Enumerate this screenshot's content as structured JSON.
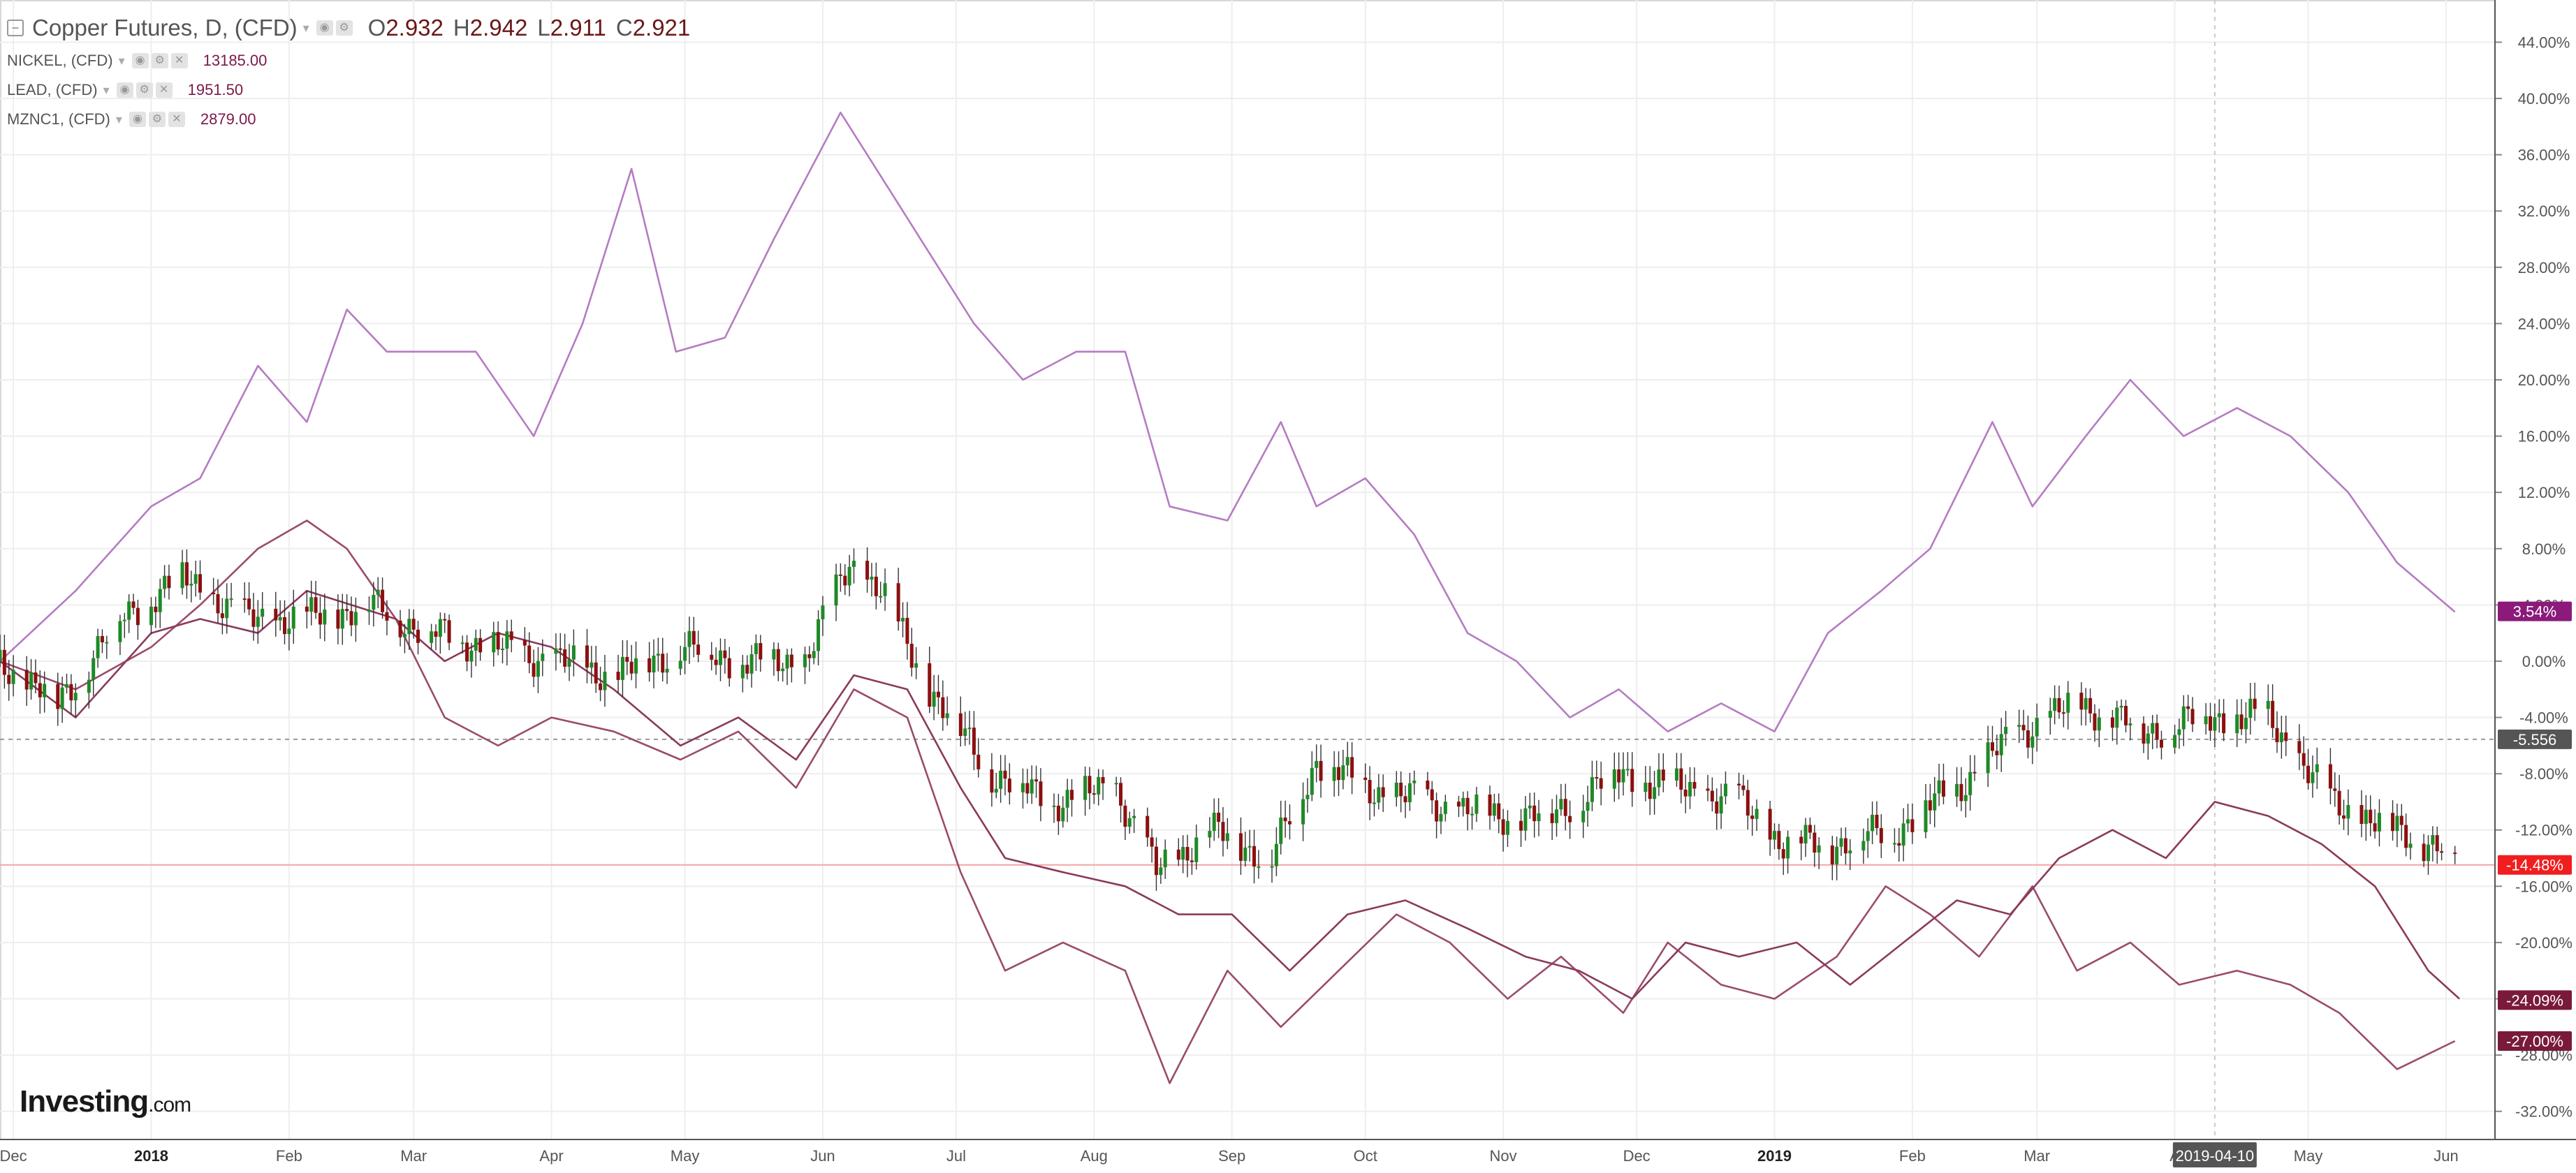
{
  "legend": {
    "main": {
      "title": "Copper Futures, D, (CFD)",
      "o_label": "O",
      "o_value": "2.932",
      "h_label": "H",
      "h_value": "2.942",
      "l_label": "L",
      "l_value": "2.911",
      "c_label": "C",
      "c_value": "2.921"
    },
    "overlays": [
      {
        "name": "NICKEL, (CFD)",
        "value": "13185.00"
      },
      {
        "name": "LEAD, (CFD)",
        "value": "1951.50"
      },
      {
        "name": "MZNC1, (CFD)",
        "value": "2879.00"
      }
    ]
  },
  "logo": {
    "name": "Investing",
    "suffix": ".com"
  },
  "chart_data": {
    "type": "line",
    "y_unit": "%",
    "ylim": [
      -34,
      47
    ],
    "y_ticks": [
      {
        "v": 44,
        "label": "44.00%"
      },
      {
        "v": 40,
        "label": "40.00%"
      },
      {
        "v": 36,
        "label": "36.00%"
      },
      {
        "v": 32,
        "label": "32.00%"
      },
      {
        "v": 28,
        "label": "28.00%"
      },
      {
        "v": 24,
        "label": "24.00%"
      },
      {
        "v": 20,
        "label": "20.00%"
      },
      {
        "v": 16,
        "label": "16.00%"
      },
      {
        "v": 12,
        "label": "12.00%"
      },
      {
        "v": 8,
        "label": "8.00%"
      },
      {
        "v": 4,
        "label": "4.00%"
      },
      {
        "v": 0,
        "label": "0.00%"
      },
      {
        "v": -4,
        "label": "-4.00%"
      },
      {
        "v": -8,
        "label": "-8.00%"
      },
      {
        "v": -12,
        "label": "-12.00%"
      },
      {
        "v": -16,
        "label": "-16.00%"
      },
      {
        "v": -20,
        "label": "-20.00%"
      },
      {
        "v": -24,
        "label": "-24.00%"
      },
      {
        "v": -28,
        "label": "-28.00%"
      },
      {
        "v": -32,
        "label": "-32.00%"
      }
    ],
    "x_ticks": [
      {
        "date": "2017-12-01",
        "label": "Dec",
        "bold": false
      },
      {
        "date": "2018-01-01",
        "label": "2018",
        "bold": true
      },
      {
        "date": "2018-02-01",
        "label": "Feb",
        "bold": false
      },
      {
        "date": "2018-03-01",
        "label": "Mar",
        "bold": false
      },
      {
        "date": "2018-04-01",
        "label": "Apr",
        "bold": false
      },
      {
        "date": "2018-05-01",
        "label": "May",
        "bold": false
      },
      {
        "date": "2018-06-01",
        "label": "Jun",
        "bold": false
      },
      {
        "date": "2018-07-01",
        "label": "Jul",
        "bold": false
      },
      {
        "date": "2018-08-01",
        "label": "Aug",
        "bold": false
      },
      {
        "date": "2018-09-01",
        "label": "Sep",
        "bold": false
      },
      {
        "date": "2018-10-01",
        "label": "Oct",
        "bold": false
      },
      {
        "date": "2018-11-01",
        "label": "Nov",
        "bold": false
      },
      {
        "date": "2018-12-01",
        "label": "Dec",
        "bold": false
      },
      {
        "date": "2019-01-01",
        "label": "2019",
        "bold": true
      },
      {
        "date": "2019-02-01",
        "label": "Feb",
        "bold": false
      },
      {
        "date": "2019-03-01",
        "label": "Mar",
        "bold": false
      },
      {
        "date": "2019-04-01",
        "label": "A",
        "bold": false
      },
      {
        "date": "2019-05-01",
        "label": "May",
        "bold": false
      },
      {
        "date": "2019-06-01",
        "label": "Jun",
        "bold": false
      }
    ],
    "x_range": [
      "2017-11-28",
      "2019-06-12"
    ],
    "crosshair": {
      "date": "2019-04-10",
      "label": "2019-04-10",
      "y_value": -5.556,
      "y_label": "-5.556"
    },
    "current_price_line": {
      "value": -14.48
    },
    "price_labels": [
      {
        "value": 3.54,
        "label": "3.54%",
        "color": "#8b1a7a"
      },
      {
        "value": -14.48,
        "label": "-14.48%",
        "color": "#f01e1e"
      },
      {
        "value": -24.09,
        "label": "-24.09%",
        "color": "#7a1a3a"
      },
      {
        "value": -27.0,
        "label": "-27.00%",
        "color": "#7a1a3a"
      }
    ],
    "colors": {
      "up": "#1e8a26",
      "down": "#8b1010",
      "nickel": "#b57cc2",
      "lead": "#9a4b6e",
      "zinc": "#8a3a5c",
      "grid": "#eeeeee",
      "price_line": "#f4a3a3"
    },
    "series": [
      {
        "name": "NICKEL, (CFD)",
        "style": "line",
        "x": [
          "2017-11-28",
          "2017-12-15",
          "2018-01-01",
          "2018-01-12",
          "2018-01-25",
          "2018-02-05",
          "2018-02-14",
          "2018-02-23",
          "2018-03-03",
          "2018-03-15",
          "2018-03-28",
          "2018-04-08",
          "2018-04-19",
          "2018-04-29",
          "2018-05-10",
          "2018-05-21",
          "2018-06-05",
          "2018-06-15",
          "2018-06-25",
          "2018-07-05",
          "2018-07-16",
          "2018-07-28",
          "2018-08-08",
          "2018-08-18",
          "2018-08-31",
          "2018-09-12",
          "2018-09-20",
          "2018-10-01",
          "2018-10-12",
          "2018-10-24",
          "2018-11-04",
          "2018-11-16",
          "2018-11-27",
          "2018-12-08",
          "2018-12-20",
          "2019-01-01",
          "2019-01-13",
          "2019-01-25",
          "2019-02-05",
          "2019-02-19",
          "2019-02-28",
          "2019-03-12",
          "2019-03-22",
          "2019-04-03",
          "2019-04-15",
          "2019-04-27",
          "2019-05-10",
          "2019-05-21",
          "2019-06-03"
        ],
        "values": [
          0,
          5,
          11,
          13,
          21,
          17,
          25,
          22,
          22,
          22,
          16,
          24,
          35,
          22,
          23,
          30,
          39,
          34,
          29,
          24,
          20,
          22,
          22,
          11,
          10,
          17,
          11,
          13,
          9,
          2,
          0,
          -4,
          -2,
          -5,
          -3,
          -5,
          2,
          5,
          8,
          17,
          11,
          16,
          20,
          16,
          18,
          16,
          12,
          7,
          3.5
        ]
      },
      {
        "name": "LEAD, (CFD)",
        "style": "line",
        "x": [
          "2017-11-28",
          "2017-12-15",
          "2018-01-01",
          "2018-01-12",
          "2018-01-25",
          "2018-02-05",
          "2018-02-14",
          "2018-02-25",
          "2018-03-08",
          "2018-03-20",
          "2018-04-01",
          "2018-04-15",
          "2018-04-30",
          "2018-05-13",
          "2018-05-26",
          "2018-06-08",
          "2018-06-20",
          "2018-07-02",
          "2018-07-12",
          "2018-07-25",
          "2018-08-08",
          "2018-08-18",
          "2018-08-31",
          "2018-09-12",
          "2018-09-25",
          "2018-10-08",
          "2018-10-20",
          "2018-11-02",
          "2018-11-14",
          "2018-11-28",
          "2018-12-08",
          "2018-12-20",
          "2019-01-01",
          "2019-01-15",
          "2019-01-26",
          "2019-02-05",
          "2019-02-16",
          "2019-02-28",
          "2019-03-10",
          "2019-03-22",
          "2019-04-02",
          "2019-04-15",
          "2019-04-27",
          "2019-05-08",
          "2019-05-21",
          "2019-06-03"
        ],
        "values": [
          0,
          -2,
          1,
          4,
          8,
          10,
          8,
          3,
          -4,
          -6,
          -4,
          -5,
          -7,
          -5,
          -9,
          -2,
          -4,
          -15,
          -22,
          -20,
          -22,
          -30,
          -22,
          -26,
          -22,
          -18,
          -20,
          -24,
          -21,
          -25,
          -20,
          -23,
          -24,
          -21,
          -16,
          -18,
          -21,
          -16,
          -22,
          -20,
          -23,
          -22,
          -23,
          -25,
          -29,
          -27
        ]
      },
      {
        "name": "MZNC1, (CFD)",
        "style": "line",
        "x": [
          "2017-11-28",
          "2017-12-15",
          "2018-01-01",
          "2018-01-12",
          "2018-01-25",
          "2018-02-05",
          "2018-02-15",
          "2018-02-25",
          "2018-03-08",
          "2018-03-20",
          "2018-04-01",
          "2018-04-15",
          "2018-04-30",
          "2018-05-13",
          "2018-05-26",
          "2018-06-08",
          "2018-06-20",
          "2018-07-02",
          "2018-07-12",
          "2018-07-25",
          "2018-08-08",
          "2018-08-20",
          "2018-09-01",
          "2018-09-14",
          "2018-09-27",
          "2018-10-10",
          "2018-10-24",
          "2018-11-06",
          "2018-11-18",
          "2018-11-30",
          "2018-12-12",
          "2018-12-24",
          "2019-01-06",
          "2019-01-18",
          "2019-01-30",
          "2019-02-11",
          "2019-02-23",
          "2019-03-06",
          "2019-03-18",
          "2019-03-30",
          "2019-04-10",
          "2019-04-22",
          "2019-05-04",
          "2019-05-16",
          "2019-05-28",
          "2019-06-04"
        ],
        "values": [
          0,
          -4,
          2,
          3,
          2,
          5,
          4,
          3,
          0,
          2,
          1,
          -2,
          -6,
          -4,
          -7,
          -1,
          -2,
          -9,
          -14,
          -15,
          -16,
          -18,
          -18,
          -22,
          -18,
          -17,
          -19,
          -21,
          -22,
          -24,
          -20,
          -21,
          -20,
          -23,
          -20,
          -17,
          -18,
          -14,
          -12,
          -14,
          -10,
          -11,
          -13,
          -16,
          -22,
          -24
        ]
      },
      {
        "name": "Copper Futures, D, (CFD)",
        "style": "candles",
        "x": [
          "2017-11-28",
          "2017-12-11",
          "2017-12-25",
          "2018-01-08",
          "2018-01-22",
          "2018-02-05",
          "2018-02-19",
          "2018-03-05",
          "2018-03-19",
          "2018-04-02",
          "2018-04-16",
          "2018-04-30",
          "2018-05-14",
          "2018-05-28",
          "2018-06-07",
          "2018-06-14",
          "2018-06-25",
          "2018-07-09",
          "2018-07-23",
          "2018-08-06",
          "2018-08-15",
          "2018-08-27",
          "2018-09-10",
          "2018-09-20",
          "2018-10-01",
          "2018-10-15",
          "2018-10-29",
          "2018-11-12",
          "2018-11-26",
          "2018-12-10",
          "2018-12-24",
          "2019-01-03",
          "2019-01-14",
          "2019-01-28",
          "2019-02-11",
          "2019-02-25",
          "2019-03-11",
          "2019-03-25",
          "2019-04-08",
          "2019-04-22",
          "2019-05-06",
          "2019-05-20",
          "2019-06-03"
        ],
        "values": [
          0,
          -3,
          3,
          6,
          3,
          3,
          4,
          2,
          1,
          0,
          -1,
          1,
          0,
          0,
          7,
          5,
          -2,
          -8,
          -10,
          -9,
          -15,
          -12,
          -14,
          -7,
          -9,
          -10,
          -11,
          -11,
          -8,
          -9,
          -10,
          -13,
          -13,
          -12,
          -9,
          -5,
          -3,
          -5,
          -4,
          -4,
          -10,
          -12,
          -13.5
        ]
      }
    ]
  }
}
